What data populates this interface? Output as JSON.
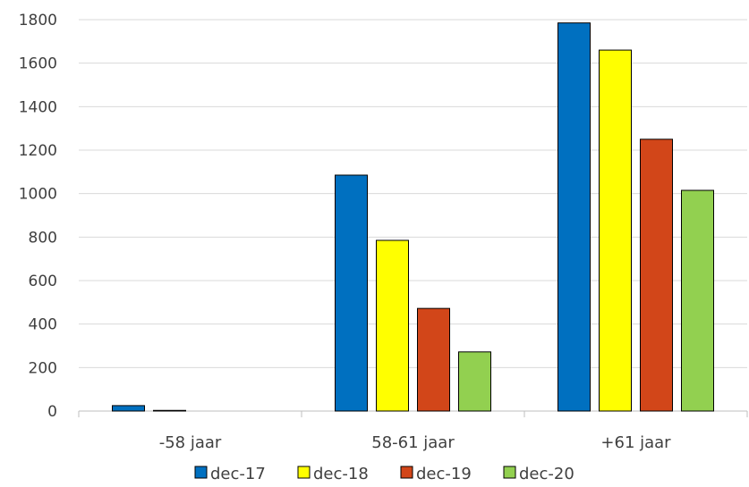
{
  "chart_data": {
    "type": "bar",
    "title": "",
    "xlabel": "",
    "ylabel": "",
    "categories": [
      "-58 jaar",
      "58-61 jaar",
      "+61 jaar"
    ],
    "ylim": [
      0,
      1800
    ],
    "yticks": [
      0,
      200,
      400,
      600,
      800,
      1000,
      1200,
      1400,
      1600,
      1800
    ],
    "grid": true,
    "legend_position": "bottom",
    "series": [
      {
        "name": "dec-17",
        "color": "#0070C0",
        "values": [
          25,
          1085,
          1785
        ]
      },
      {
        "name": "dec-18",
        "color": "#FFFF00",
        "values": [
          3,
          785,
          1660
        ]
      },
      {
        "name": "dec-19",
        "color": "#D24619",
        "values": [
          0,
          472,
          1250
        ]
      },
      {
        "name": "dec-20",
        "color": "#92D050",
        "values": [
          0,
          272,
          1015
        ]
      }
    ]
  }
}
